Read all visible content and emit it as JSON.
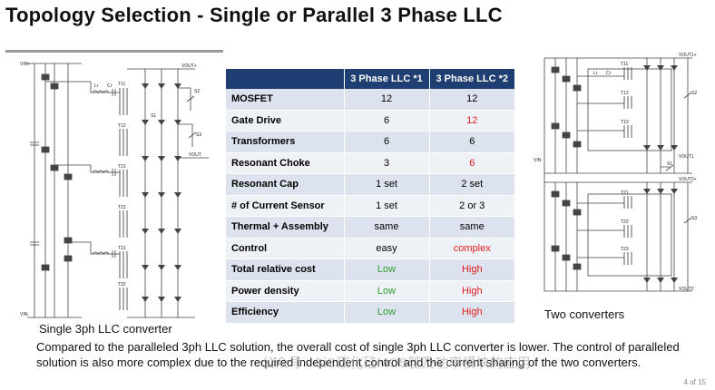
{
  "title": "Topology Selection - Single or Parallel 3 Phase LLC",
  "left_schematic": {
    "caption": "Single 3ph LLC converter",
    "labels": {
      "vin_pos": "VIN+",
      "vin_neg": "VIN-",
      "vout_pos": "VOUT+",
      "vout": "VOUT",
      "s1": "S1",
      "s2": "S2",
      "s3": "S3",
      "t11": "T11",
      "t12": "T12",
      "t21": "T21",
      "t22": "T22",
      "t31": "T31",
      "t32": "T32",
      "lr": "Lr",
      "cr": "Cr"
    }
  },
  "right_schematic": {
    "caption": "Two converters",
    "labels": {
      "vin": "VIN",
      "vout1_pos": "VOUT1+",
      "vout1": "VOUT1",
      "vout2_pos": "VOUT2+",
      "vout2": "VOUT2",
      "s1": "S1",
      "s2": "S2",
      "s3": "S3",
      "t11": "T11",
      "t12": "T12",
      "t13": "T13",
      "t21": "T21",
      "t22": "T22",
      "t23": "T23",
      "lr": "Lr",
      "cr": "Cr"
    }
  },
  "table": {
    "headers": [
      "",
      "3 Phase LLC *1",
      "3 Phase LLC *2"
    ],
    "rows": [
      {
        "label": "MOSFET",
        "c1": "12",
        "c1_color": "normal",
        "c2": "12",
        "c2_color": "normal"
      },
      {
        "label": "Gate Drive",
        "c1": "6",
        "c1_color": "normal",
        "c2": "12",
        "c2_color": "red"
      },
      {
        "label": "Transformers",
        "c1": "6",
        "c1_color": "normal",
        "c2": "6",
        "c2_color": "normal"
      },
      {
        "label": "Resonant Choke",
        "c1": "3",
        "c1_color": "normal",
        "c2": "6",
        "c2_color": "red"
      },
      {
        "label": "Resonant Cap",
        "c1": "1 set",
        "c1_color": "normal",
        "c2": "2 set",
        "c2_color": "normal"
      },
      {
        "label": "# of Current Sensor",
        "c1": "1 set",
        "c1_color": "normal",
        "c2": "2 or 3",
        "c2_color": "normal"
      },
      {
        "label": "Thermal + Assembly",
        "c1": "same",
        "c1_color": "normal",
        "c2": "same",
        "c2_color": "normal"
      },
      {
        "label": "Control",
        "c1": "easy",
        "c1_color": "normal",
        "c2": "complex",
        "c2_color": "red"
      },
      {
        "label": "Total relative cost",
        "c1": "Low",
        "c1_color": "green",
        "c2": "High",
        "c2_color": "red"
      },
      {
        "label": "Power density",
        "c1": "Low",
        "c1_color": "green",
        "c2": "High",
        "c2_color": "red"
      },
      {
        "label": "Efficiency",
        "c1": "Low",
        "c1_color": "green",
        "c2": "High",
        "c2_color": "red"
      }
    ]
  },
  "footer_text": "Compared to the paralleled 3ph LLC solution, the overall cost of single 3ph LLC converter is lower. The control of paralleled solution is also more complex due to the required independent control and the current sharing of the two converters.",
  "watermark": "公众号 · SiC碳化硅MOS管及功率模块的应用",
  "page_number": "4 of 15",
  "colors": {
    "header_bg": "#1f3f73",
    "row_odd": "#dde3ee",
    "row_even": "#eef1f6",
    "green": "#2e9e2e",
    "red": "#e01b1b"
  }
}
